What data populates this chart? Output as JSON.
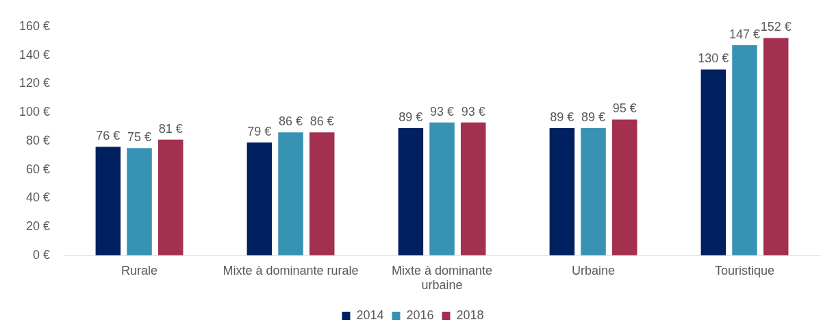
{
  "chart_data": {
    "type": "bar",
    "categories": [
      "Rurale",
      "Mixte à dominante rurale",
      "Mixte à dominante urbaine",
      "Urbaine",
      "Touristique"
    ],
    "series": [
      {
        "name": "2014",
        "color": "#002060",
        "values": [
          76,
          79,
          89,
          89,
          130
        ],
        "value_labels": [
          "76 €",
          "79 €",
          "89 €",
          "89 €",
          "130 €"
        ]
      },
      {
        "name": "2016",
        "color": "#3892b4",
        "values": [
          75,
          86,
          93,
          89,
          147
        ],
        "value_labels": [
          "75 €",
          "86 €",
          "93 €",
          "89 €",
          "147 €"
        ]
      },
      {
        "name": "2018",
        "color": "#a3304f",
        "values": [
          81,
          86,
          93,
          95,
          152
        ],
        "value_labels": [
          "81 €",
          "86 €",
          "93 €",
          "95 €",
          "152 €"
        ]
      }
    ],
    "ylim": [
      0,
      160
    ],
    "yticks": [
      {
        "value": 0,
        "label": "0 €"
      },
      {
        "value": 20,
        "label": "20 €"
      },
      {
        "value": 40,
        "label": "40 €"
      },
      {
        "value": 60,
        "label": "60 €"
      },
      {
        "value": 80,
        "label": "80 €"
      },
      {
        "value": 100,
        "label": "100 €"
      },
      {
        "value": 120,
        "label": "120 €"
      },
      {
        "value": 140,
        "label": "140 €"
      },
      {
        "value": 160,
        "label": "160 €"
      }
    ],
    "grid": false,
    "legend": "bottom"
  }
}
